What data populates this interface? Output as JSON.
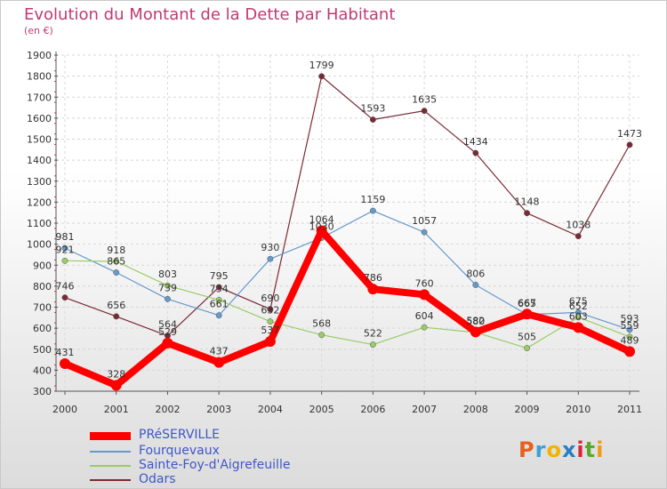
{
  "header": {
    "title": "Evolution du Montant de la Dette par Habitant",
    "subtitle": "(en €)"
  },
  "logo": {
    "text": "Proxiti",
    "colors": [
      "#e8601c",
      "#3aa0d8",
      "#f2b400",
      "#2a7fc0",
      "#d9253a",
      "#5aa82c",
      "#f09a1a"
    ]
  },
  "chart_data": {
    "type": "line",
    "title": "Evolution du Montant de la Dette par Habitant",
    "subtitle": "(en €)",
    "x": [
      "2000",
      "2001",
      "2002",
      "2003",
      "2004",
      "2005",
      "2006",
      "2007",
      "2008",
      "2009",
      "2010",
      "2011"
    ],
    "ylim": [
      300,
      1900
    ],
    "yticks": [
      300,
      400,
      500,
      600,
      700,
      800,
      900,
      1000,
      1100,
      1200,
      1300,
      1400,
      1500,
      1600,
      1700,
      1800,
      1900
    ],
    "grid": true,
    "legend_position": "bottom-left",
    "series": [
      {
        "name": "PRéSERVILLE",
        "color": "#ff0000",
        "values": [
          431,
          328,
          529,
          437,
          537,
          1064,
          786,
          760,
          582,
          667,
          603,
          489
        ]
      },
      {
        "name": "Fourquevaux",
        "color": "#6699cc",
        "values": [
          981,
          865,
          739,
          661,
          930,
          1030,
          1159,
          1057,
          806,
          665,
          675,
          593
        ]
      },
      {
        "name": "Sainte-Foy-d'Aigrefeuille",
        "color": "#99cc66",
        "values": [
          921,
          918,
          803,
          734,
          632,
          568,
          522,
          604,
          580,
          505,
          652,
          559
        ]
      },
      {
        "name": "Odars",
        "color": "#7a2a35",
        "values": [
          746,
          656,
          564,
          795,
          690,
          1799,
          1593,
          1635,
          1434,
          1148,
          1038,
          1473
        ]
      }
    ]
  }
}
